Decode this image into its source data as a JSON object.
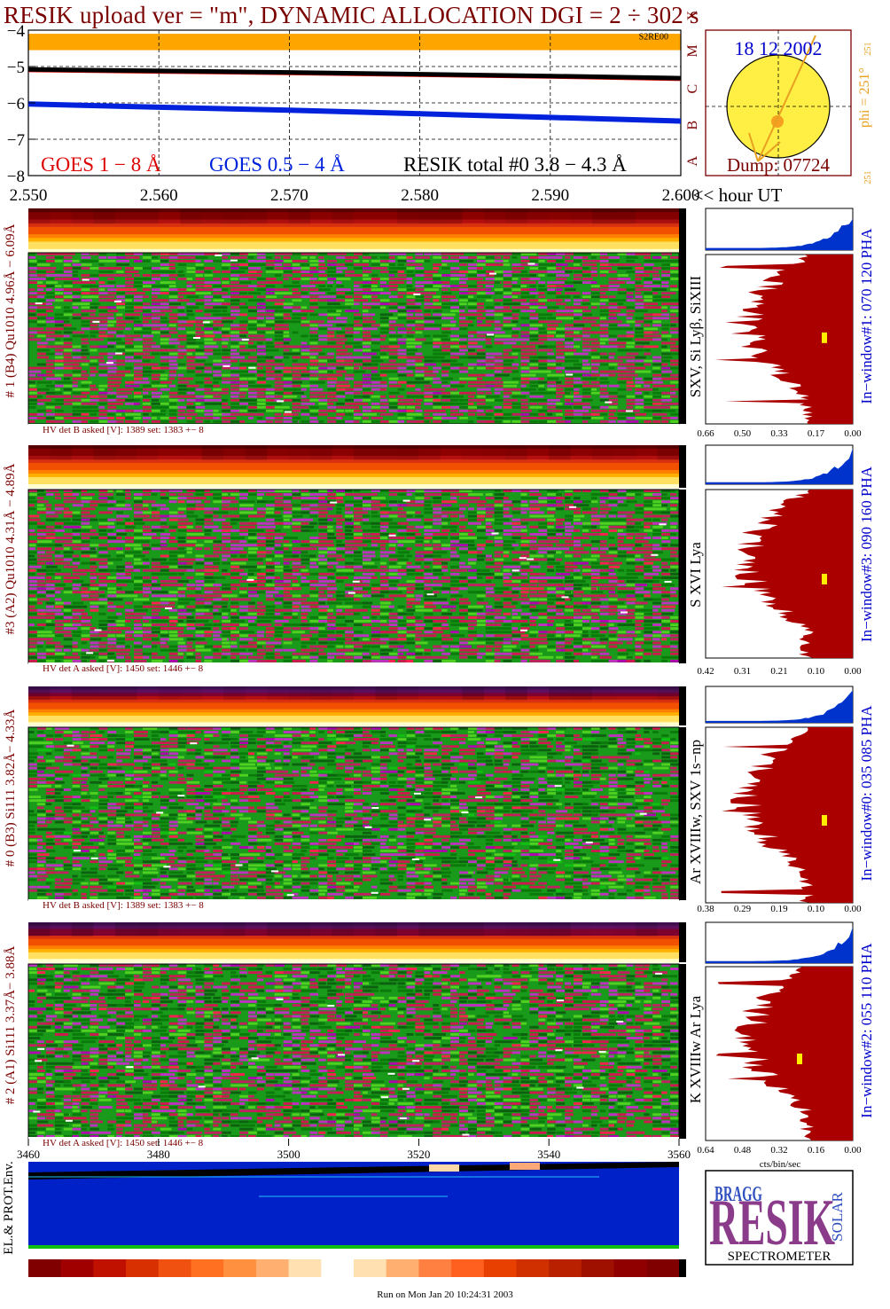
{
  "title": "RESIK upload ver = \"m\", DYNAMIC ALLOCATION  DGI =   2 ÷ 302 s",
  "colors": {
    "title": "#7a0000",
    "goes_long": "#dd0000",
    "goes_short": "#0022dd",
    "resik_total": "#000000",
    "flare_band": "#ffa500",
    "histogram_fill": "#aa0000",
    "histogram_top": "#0033cc",
    "window_label": "#0000cc",
    "sun_disc": "#ffee44"
  },
  "lightcurve": {
    "y_ticks": [
      "−4",
      "−5",
      "−6",
      "−7",
      "−8"
    ],
    "x_ticks": [
      "2.550",
      "2.560",
      "2.570",
      "2.580",
      "2.590",
      "2.600"
    ],
    "x_unit_label": "<< hour UT",
    "class_letters": [
      "A",
      "B",
      "C",
      "M",
      "X"
    ],
    "legend_goes_long": "GOES 1 − 8 Å",
    "legend_goes_short": "GOES 0.5 − 4 Å",
    "legend_resik": "RESIK total #0  3.8 − 4.3 Å",
    "corner_tag": "S2RE00"
  },
  "chart_data": {
    "type": "line",
    "title": "RESIK upload ver = \"m\", DYNAMIC ALLOCATION  DGI =   2 ÷ 302 s",
    "xlabel": "<< hour UT",
    "ylabel": "",
    "xlim": [
      2.55,
      2.6
    ],
    "ylim": [
      -8,
      -4
    ],
    "series": [
      {
        "name": "GOES 1 − 8 Å",
        "x": [
          2.55,
          2.56,
          2.57,
          2.58,
          2.59,
          2.6
        ],
        "values": [
          -5.12,
          -5.16,
          -5.2,
          -5.25,
          -5.3,
          -5.36
        ]
      },
      {
        "name": "GOES 0.5 − 4 Å",
        "x": [
          2.55,
          2.56,
          2.57,
          2.58,
          2.59,
          2.6
        ],
        "values": [
          -6.03,
          -6.12,
          -6.2,
          -6.3,
          -6.4,
          -6.5
        ]
      },
      {
        "name": "RESIK total #0  3.8 − 4.3 Å",
        "x": [
          2.55,
          2.56,
          2.57,
          2.58,
          2.59,
          2.6
        ],
        "values": [
          -5.08,
          -5.12,
          -5.16,
          -5.21,
          -5.26,
          -5.32
        ]
      }
    ]
  },
  "sun": {
    "date": "18 12 2002",
    "dump": "Dump: 07724",
    "phi": "phi = 251°",
    "phi_small": "251",
    "phi_bottom": "251"
  },
  "panels": [
    {
      "ylabel": "# 1 (B4) Qu1010 4.96Å − 6.09Å",
      "line_label": "SXV, Si Lyβ, SiXIII",
      "hv": "HV det B asked [V]:  1389 set:  1383  +−    8",
      "window": "In−window#1:  070 120 PHA",
      "hist_ticks": [
        "0.66",
        "0.50",
        "0.33",
        "0.17",
        "0.00"
      ]
    },
    {
      "ylabel": "#3 (A2) Qu1010  4.31Å − 4.89Å",
      "line_label": "S XVI Lya",
      "hv": "HV det A asked [V]:  1450 set:  1446  +−    8",
      "window": "In−window#3:  090 160 PHA",
      "hist_ticks": [
        "0.42",
        "0.31",
        "0.21",
        "0.10",
        "0.00"
      ]
    },
    {
      "ylabel": "# 0 (B3) Si111  3.82Å− 4.33Å",
      "line_label": "Ar XVIIIw,  SXV 1s−np",
      "hv": "HV det B asked [V]:  1389 set:  1383  +−    8",
      "window": "In−window#0:  035 085 PHA",
      "hist_ticks": [
        "0.38",
        "0.29",
        "0.19",
        "0.10",
        "0.00"
      ]
    },
    {
      "ylabel": "# 2 (A1) Si111  3.37Å− 3.88Å",
      "line_label": "K XVIIIw  Ar Lya",
      "hv": "HV det A asked [V]:  1450 set:  1446  +−    8",
      "window": "In−window#2:  055 110 PHA",
      "hist_ticks": [
        "0.64",
        "0.48",
        "0.32",
        "0.16",
        "0.00"
      ]
    }
  ],
  "bottom_axis": {
    "ticks": [
      "3460",
      "3480",
      "3500",
      "3520",
      "3540",
      "3560"
    ],
    "hist_unit": "cts/bin/sec"
  },
  "env_label": "EL.& PROT.Env.",
  "logo": {
    "letters_top": "BRAGG",
    "letters_main": "RESIK",
    "letters_side": "SOLAR",
    "caption": "SPECTROMETER"
  },
  "run_line": "Run on Mon Jan 20 10:24:31 2003"
}
